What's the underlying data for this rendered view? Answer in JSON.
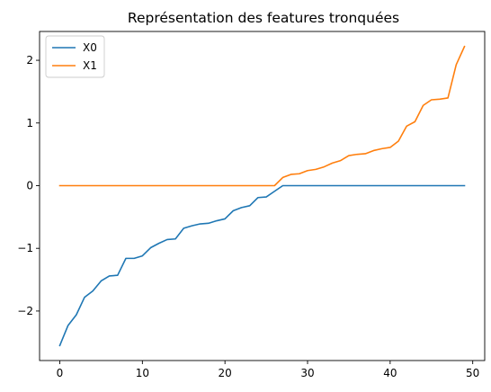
{
  "chart_data": {
    "type": "line",
    "title": "Représentation des features tronquées",
    "xlabel": "",
    "ylabel": "",
    "xlim": [
      -2.45,
      51.45
    ],
    "ylim": [
      -2.79,
      2.46
    ],
    "grid": false,
    "legend_position": "top-left",
    "x": [
      0,
      1,
      2,
      3,
      4,
      5,
      6,
      7,
      8,
      9,
      10,
      11,
      12,
      13,
      14,
      15,
      16,
      17,
      18,
      19,
      20,
      21,
      22,
      23,
      24,
      25,
      26,
      27,
      28,
      29,
      30,
      31,
      32,
      33,
      34,
      35,
      36,
      37,
      38,
      39,
      40,
      41,
      42,
      43,
      44,
      45,
      46,
      47,
      48,
      49
    ],
    "series": [
      {
        "name": "X0",
        "color": "#1f77b4",
        "values": [
          -2.55,
          -2.23,
          -2.06,
          -1.78,
          -1.68,
          -1.52,
          -1.44,
          -1.43,
          -1.16,
          -1.16,
          -1.12,
          -0.99,
          -0.92,
          -0.86,
          -0.85,
          -0.68,
          -0.64,
          -0.61,
          -0.6,
          -0.56,
          -0.53,
          -0.4,
          -0.35,
          -0.32,
          -0.19,
          -0.18,
          -0.09,
          0.0,
          0.0,
          0.0,
          0.0,
          0.0,
          0.0,
          0.0,
          0.0,
          0.0,
          0.0,
          0.0,
          0.0,
          0.0,
          0.0,
          0.0,
          0.0,
          0.0,
          0.0,
          0.0,
          0.0,
          0.0,
          0.0,
          0.0
        ]
      },
      {
        "name": "X1",
        "color": "#ff7f0e",
        "values": [
          0.0,
          0.0,
          0.0,
          0.0,
          0.0,
          0.0,
          0.0,
          0.0,
          0.0,
          0.0,
          0.0,
          0.0,
          0.0,
          0.0,
          0.0,
          0.0,
          0.0,
          0.0,
          0.0,
          0.0,
          0.0,
          0.0,
          0.0,
          0.0,
          0.0,
          0.0,
          0.0,
          0.13,
          0.18,
          0.19,
          0.24,
          0.26,
          0.3,
          0.36,
          0.4,
          0.48,
          0.5,
          0.51,
          0.56,
          0.59,
          0.61,
          0.71,
          0.95,
          1.02,
          1.28,
          1.37,
          1.38,
          1.4,
          1.93,
          2.22
        ]
      }
    ],
    "x_ticks": [
      0,
      10,
      20,
      30,
      40,
      50
    ],
    "y_ticks": [
      -2,
      -1,
      0,
      1,
      2
    ],
    "x_tick_labels": [
      "0",
      "10",
      "20",
      "30",
      "40",
      "50"
    ],
    "y_tick_labels": [
      "−2",
      "−1",
      "0",
      "1",
      "2"
    ]
  }
}
